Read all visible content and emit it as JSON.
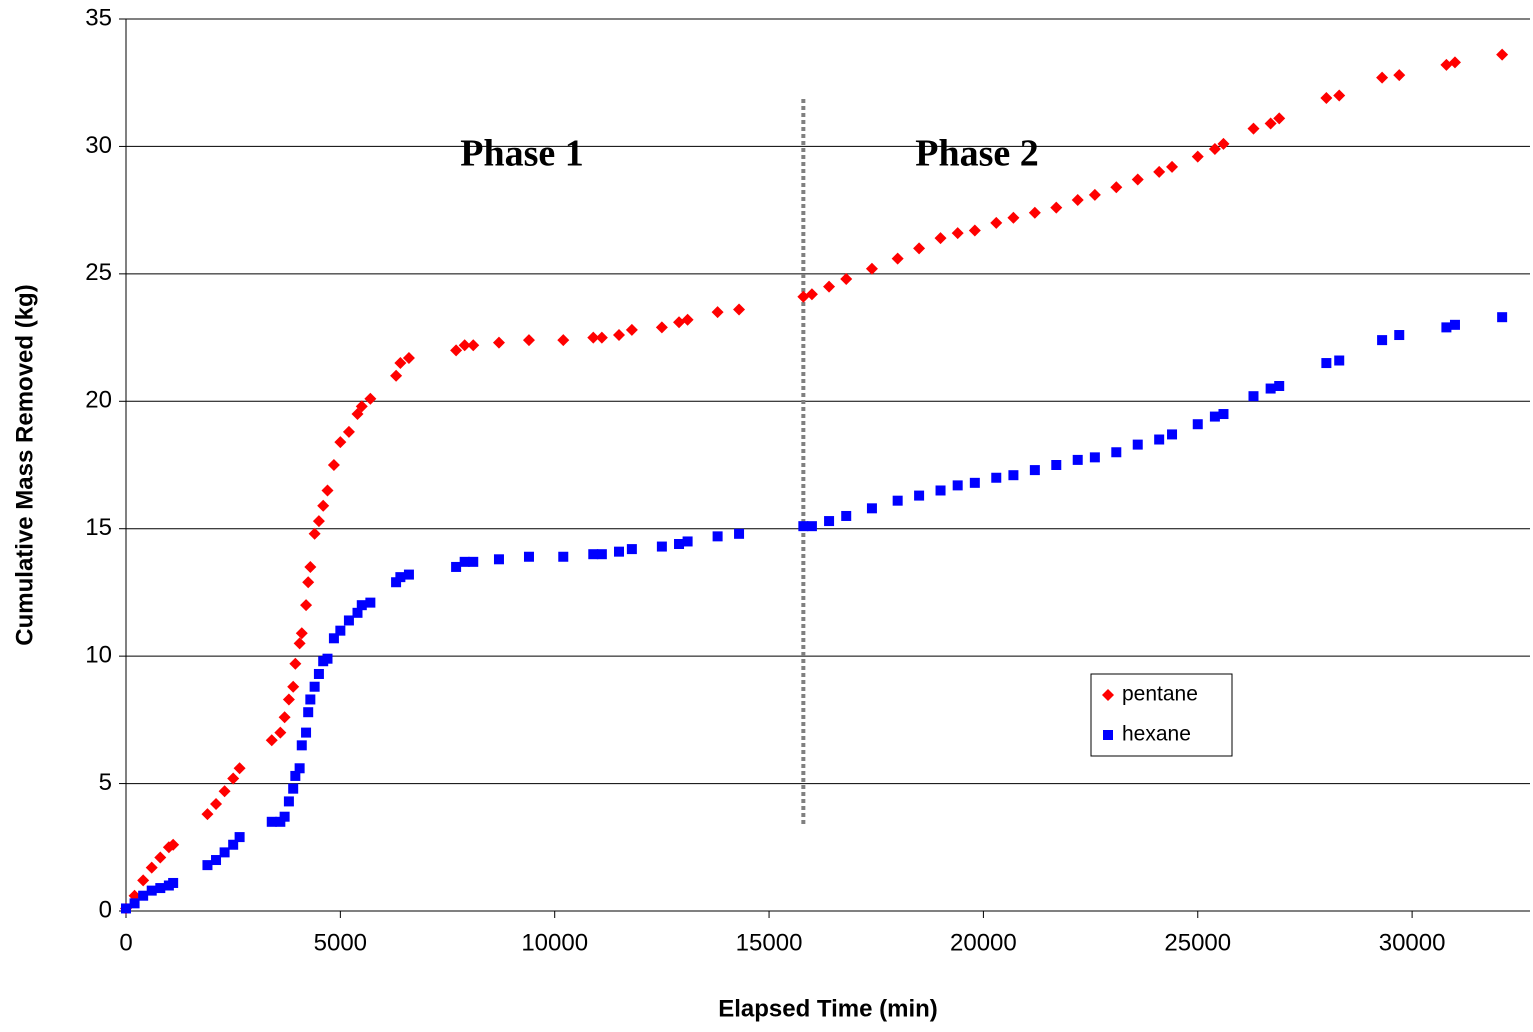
{
  "chart_data": {
    "type": "scatter",
    "xlabel": "Elapsed Time (min)",
    "ylabel": "Cumulative Mass Removed (kg)",
    "annotations": [
      "Phase 1",
      "Phase 2"
    ],
    "divider_x": 15800,
    "x": [
      0,
      200,
      400,
      600,
      800,
      1000,
      1100,
      1900,
      2100,
      2300,
      2500,
      2650,
      3400,
      3600,
      3700,
      3800,
      3900,
      3950,
      4050,
      4100,
      4200,
      4250,
      4300,
      4400,
      4500,
      4600,
      4700,
      4850,
      5000,
      5200,
      5400,
      5500,
      5700,
      6300,
      6400,
      6600,
      7700,
      7900,
      8100,
      8700,
      9400,
      10200,
      10900,
      11100,
      11500,
      11800,
      12500,
      12900,
      13100,
      13800,
      14300,
      15800,
      16000,
      16400,
      16800,
      17400,
      18000,
      18500,
      19000,
      19400,
      19800,
      20300,
      20700,
      21200,
      21700,
      22200,
      22600,
      23100,
      23600,
      24100,
      24400,
      25000,
      25400,
      25600,
      26300,
      26700,
      26900,
      28000,
      28300,
      29300,
      29700,
      30800,
      31000,
      32100
    ],
    "series": [
      {
        "name": "pentane",
        "color": "#ff0000",
        "marker": "diamond",
        "values": [
          0.1,
          0.6,
          1.2,
          1.7,
          2.1,
          2.5,
          2.6,
          3.8,
          4.2,
          4.7,
          5.2,
          5.6,
          6.7,
          7.0,
          7.6,
          8.3,
          8.8,
          9.7,
          10.5,
          10.9,
          12.0,
          12.9,
          13.5,
          14.8,
          15.3,
          15.9,
          16.5,
          17.5,
          18.4,
          18.8,
          19.5,
          19.8,
          20.1,
          21.0,
          21.5,
          21.7,
          22.0,
          22.2,
          22.2,
          22.3,
          22.4,
          22.4,
          22.5,
          22.5,
          22.6,
          22.8,
          22.9,
          23.1,
          23.2,
          23.5,
          23.6,
          24.1,
          24.2,
          24.5,
          24.8,
          25.2,
          25.6,
          26.0,
          26.4,
          26.6,
          26.7,
          27.0,
          27.2,
          27.4,
          27.6,
          27.9,
          28.1,
          28.4,
          28.7,
          29.0,
          29.2,
          29.6,
          29.9,
          30.1,
          30.7,
          30.9,
          31.1,
          31.9,
          32.0,
          32.7,
          32.8,
          33.2,
          33.3,
          33.6
        ]
      },
      {
        "name": "hexane",
        "color": "#0000ff",
        "marker": "square",
        "values": [
          0.1,
          0.3,
          0.6,
          0.8,
          0.9,
          1.0,
          1.1,
          1.8,
          2.0,
          2.3,
          2.6,
          2.9,
          3.5,
          3.5,
          3.7,
          4.3,
          4.8,
          5.3,
          5.6,
          6.5,
          7.0,
          7.8,
          8.3,
          8.8,
          9.3,
          9.8,
          9.9,
          10.7,
          11.0,
          11.4,
          11.7,
          12.0,
          12.1,
          12.9,
          13.1,
          13.2,
          13.5,
          13.7,
          13.7,
          13.8,
          13.9,
          13.9,
          14.0,
          14.0,
          14.1,
          14.2,
          14.3,
          14.4,
          14.5,
          14.7,
          14.8,
          15.1,
          15.1,
          15.3,
          15.5,
          15.8,
          16.1,
          16.3,
          16.5,
          16.7,
          16.8,
          17.0,
          17.1,
          17.3,
          17.5,
          17.7,
          17.8,
          18.0,
          18.3,
          18.5,
          18.7,
          19.1,
          19.4,
          19.5,
          20.2,
          20.5,
          20.6,
          21.5,
          21.6,
          22.4,
          22.6,
          22.9,
          23.0,
          23.3
        ]
      }
    ],
    "xlim": [
      0,
      32750
    ],
    "ylim": [
      0,
      35
    ],
    "xticks": [
      0,
      5000,
      10000,
      15000,
      20000,
      25000,
      30000
    ],
    "yticks": [
      0,
      5,
      10,
      15,
      20,
      25,
      30,
      35
    ],
    "grid": true,
    "legend": "right"
  }
}
